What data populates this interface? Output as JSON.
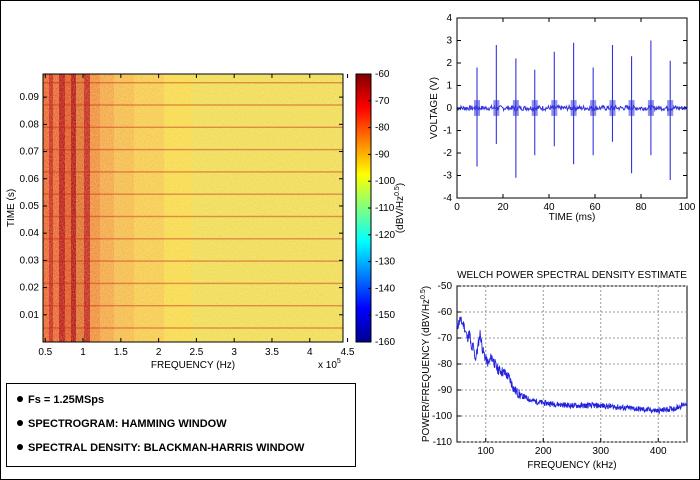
{
  "spectrogram": {
    "ylabel": "TIME (s)",
    "xlabel": "FREQUENCY (Hz)",
    "x_multiplier": "x 10",
    "x_multiplier_exp": "5",
    "y_ticks": [
      "0.01",
      "0.02",
      "0.03",
      "0.04",
      "0.05",
      "0.06",
      "0.07",
      "0.08",
      "0.09"
    ],
    "x_ticks": [
      "0.5",
      "1",
      "1.5",
      "2",
      "2.5",
      "3",
      "3.5",
      "4",
      "4.5"
    ],
    "colorbar_ticks": [
      "-60",
      "-70",
      "-80",
      "-90",
      "-100",
      "-110",
      "-120",
      "-130",
      "-140",
      "-150",
      "-160"
    ],
    "colorbar_label": "(dBV/Hz",
    "colorbar_label_exp": "0.5",
    "colorbar_label_end": ")"
  },
  "chart_data": [
    {
      "type": "line",
      "title": "",
      "xlabel": "TIME (ms)",
      "ylabel": "VOLTAGE (V)",
      "xlim": [
        0,
        100
      ],
      "ylim": [
        -4,
        4
      ],
      "x_ticks": [
        "0",
        "20",
        "40",
        "60",
        "80",
        "100"
      ],
      "y_ticks": [
        "4",
        "3",
        "2",
        "1",
        "0",
        "-1",
        "-2",
        "-3",
        "-4"
      ],
      "grid": false,
      "series_color": "#3333dd",
      "spikes": [
        {
          "t": 8.7,
          "pos": 1.8,
          "neg": -2.6
        },
        {
          "t": 17.1,
          "pos": 2.8,
          "neg": -1.6
        },
        {
          "t": 25.6,
          "pos": 2.2,
          "neg": -3.1
        },
        {
          "t": 33.8,
          "pos": 1.7,
          "neg": -2.1
        },
        {
          "t": 42.3,
          "pos": 2.5,
          "neg": -1.7
        },
        {
          "t": 50.7,
          "pos": 2.9,
          "neg": -2.5
        },
        {
          "t": 59.2,
          "pos": 1.8,
          "neg": -2.1
        },
        {
          "t": 67.6,
          "pos": 2.8,
          "neg": -1.5
        },
        {
          "t": 75.9,
          "pos": 2.3,
          "neg": -2.9
        },
        {
          "t": 84.3,
          "pos": 3.0,
          "neg": -2.1
        },
        {
          "t": 92.7,
          "pos": 2.1,
          "neg": -3.2
        }
      ]
    },
    {
      "type": "line",
      "title": "WELCH POWER SPECTRAL DENSITY ESTIMATE",
      "xlabel": "FREQUENCY (kHz)",
      "ylabel": "POWER/FREQUENCY (dBV/Hz",
      "ylabel_exp": "0.5",
      "ylabel_end": ")",
      "xlim": [
        50,
        450
      ],
      "ylim": [
        -110,
        -50
      ],
      "x_ticks": [
        "100",
        "200",
        "300",
        "400"
      ],
      "x_tick_values": [
        100,
        200,
        300,
        400
      ],
      "y_ticks": [
        "-50",
        "-60",
        "-70",
        "-80",
        "-90",
        "-100",
        "-110"
      ],
      "grid": true,
      "series_color": "#2222dd",
      "x": [
        50,
        55,
        62,
        68,
        72,
        75,
        78,
        82,
        86,
        90,
        95,
        100,
        105,
        110,
        120,
        130,
        140,
        150,
        160,
        170,
        180,
        200,
        250,
        300,
        350,
        400,
        430,
        450
      ],
      "y": [
        -66,
        -63,
        -65,
        -70,
        -68,
        -75,
        -73,
        -78,
        -74,
        -68,
        -75,
        -78,
        -80,
        -77,
        -82,
        -83,
        -85,
        -90,
        -92,
        -93,
        -94,
        -95,
        -96,
        -96,
        -97,
        -98,
        -97,
        -95
      ]
    }
  ],
  "notes": [
    "Fs = 1.25MSps",
    "SPECTROGRAM: HAMMING WINDOW",
    "SPECTRAL DENSITY: BLACKMAN-HARRIS WINDOW"
  ]
}
